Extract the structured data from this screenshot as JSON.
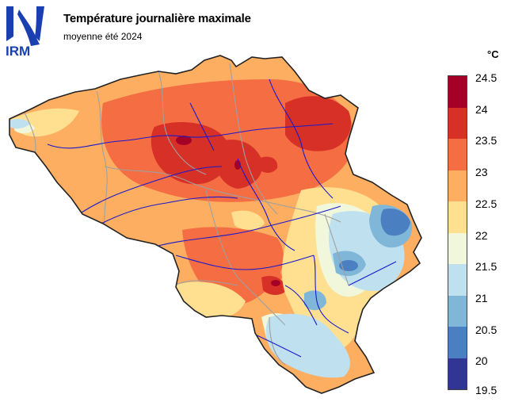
{
  "header": {
    "logo_text": "IRM",
    "title": "Température journalière maximale",
    "subtitle": "moyenne été 2024"
  },
  "legend": {
    "unit": "°C",
    "ticks": [
      "24.5",
      "24",
      "23.5",
      "23",
      "22.5",
      "22",
      "21.5",
      "21",
      "20.5",
      "20",
      "19.5"
    ],
    "colors": [
      "#a50026",
      "#d73027",
      "#f46d43",
      "#fdae61",
      "#fee090",
      "#f0f7da",
      "#bfe0ef",
      "#80b6d8",
      "#4a7fc1",
      "#313695"
    ]
  },
  "colors": {
    "border": "#222222",
    "rivers": "#1a1acc",
    "provinces": "#a0a0a0",
    "logo": "#1a3fb0"
  }
}
